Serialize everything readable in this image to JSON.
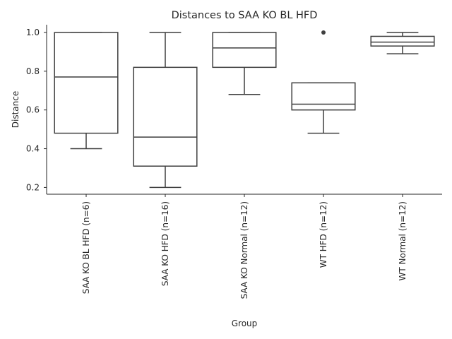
{
  "chart_data": {
    "type": "box",
    "title": "Distances to SAA KO BL HFD",
    "xlabel": "Group",
    "ylabel": "Distance",
    "ylim": [
      0.165,
      1.04
    ],
    "yticks": [
      "0.2",
      "0.4",
      "0.6",
      "0.8",
      "1.0"
    ],
    "ytick_values": [
      0.2,
      0.4,
      0.6,
      0.8,
      1.0
    ],
    "categories": [
      "SAA KO BL HFD (n=6)",
      "SAA KO HFD (n=16)",
      "SAA KO Normal (n=12)",
      "WT HFD (n=12)",
      "WT Normal (n=12)"
    ],
    "boxes": [
      {
        "whisker_low": 0.4,
        "q1": 0.48,
        "median": 0.77,
        "q3": 1.0,
        "whisker_high": 1.0,
        "outliers": []
      },
      {
        "whisker_low": 0.2,
        "q1": 0.31,
        "median": 0.46,
        "q3": 0.82,
        "whisker_high": 1.0,
        "outliers": []
      },
      {
        "whisker_low": 0.68,
        "q1": 0.82,
        "median": 0.92,
        "q3": 1.0,
        "whisker_high": 1.0,
        "outliers": []
      },
      {
        "whisker_low": 0.48,
        "q1": 0.6,
        "median": 0.63,
        "q3": 0.74,
        "whisker_high": 0.74,
        "outliers": [
          1.0
        ]
      },
      {
        "whisker_low": 0.89,
        "q1": 0.93,
        "median": 0.95,
        "q3": 0.98,
        "whisker_high": 1.0,
        "outliers": []
      }
    ],
    "grid": false,
    "colors": {
      "box_edge": "#3f3f3f",
      "axis": "#262626",
      "text": "#262626",
      "background": "#ffffff"
    }
  }
}
